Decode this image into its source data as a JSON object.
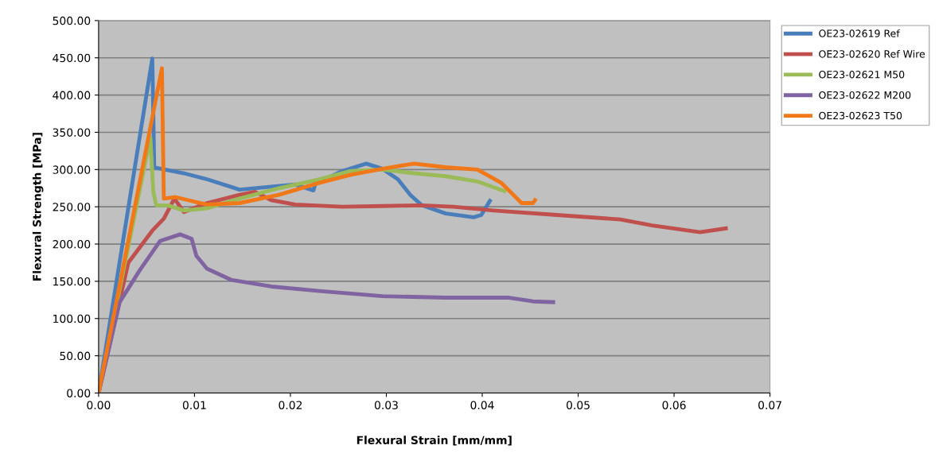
{
  "chart_data": {
    "type": "line",
    "xlabel": "Flexural Strain [mm/mm]",
    "ylabel": "Flexural Strength [MPa]",
    "xlim": [
      0,
      0.07
    ],
    "xticks": [
      {
        "value": 0,
        "label": "0.00"
      },
      {
        "value": 0.01,
        "label": "0.01"
      },
      {
        "value": 0.02,
        "label": "0.02"
      },
      {
        "value": 0.03,
        "label": "0.03"
      },
      {
        "value": 0.04,
        "label": "0.04"
      },
      {
        "value": 0.05,
        "label": "0.05"
      },
      {
        "value": 0.06,
        "label": "0.06"
      },
      {
        "value": 0.07,
        "label": "0.07"
      }
    ],
    "ylim": [
      0,
      500
    ],
    "yticks": [
      {
        "value": 0,
        "label": "0.00"
      },
      {
        "value": 50,
        "label": "50.00"
      },
      {
        "value": 100,
        "label": "100.00"
      },
      {
        "value": 150,
        "label": "150.00"
      },
      {
        "value": 200,
        "label": "200.00"
      },
      {
        "value": 250,
        "label": "250.00"
      },
      {
        "value": 300,
        "label": "300.00"
      },
      {
        "value": 350,
        "label": "350.00"
      },
      {
        "value": 400,
        "label": "400.00"
      },
      {
        "value": 450,
        "label": "450.00"
      },
      {
        "value": 500,
        "label": "500.00"
      }
    ],
    "grid": "y",
    "legend": "right",
    "marker": "none",
    "line_style": "solid",
    "series": [
      {
        "name": "OE23-02619 Ref",
        "color": "#4a7ebb",
        "x": [
          0,
          0.0056,
          0.0058,
          0.0089,
          0.0113,
          0.0147,
          0.018,
          0.0205,
          0.0224,
          0.0226,
          0.0254,
          0.0279,
          0.0296,
          0.0312,
          0.0325,
          0.0337,
          0.0362,
          0.0391,
          0.0399,
          0.0408
        ],
        "values": [
          0,
          449,
          303,
          295,
          287,
          273,
          277,
          280,
          272,
          281,
          298,
          308,
          301,
          287,
          266,
          252,
          241,
          236,
          239,
          258
        ]
      },
      {
        "name": "OE23-02620 Ref Wire",
        "color": "#c0504d",
        "x": [
          0,
          0.0031,
          0.0056,
          0.0068,
          0.0079,
          0.0089,
          0.0113,
          0.0147,
          0.0163,
          0.018,
          0.0205,
          0.0254,
          0.0296,
          0.0337,
          0.037,
          0.0412,
          0.0478,
          0.0544,
          0.0577,
          0.0627,
          0.0654
        ],
        "values": [
          0,
          175,
          218,
          234,
          261,
          243,
          255,
          266,
          270,
          259,
          253,
          250,
          251,
          252,
          250,
          245,
          239,
          233,
          225,
          216,
          221
        ]
      },
      {
        "name": "OE23-02621 M50",
        "color": "#9bbb59",
        "x": [
          0,
          0.0054,
          0.0057,
          0.006,
          0.0072,
          0.0089,
          0.0113,
          0.0147,
          0.0188,
          0.023,
          0.0263,
          0.0296,
          0.0329,
          0.0362,
          0.0395,
          0.0423
        ],
        "values": [
          0,
          343,
          271,
          252,
          252,
          245,
          248,
          261,
          275,
          287,
          298,
          300,
          295,
          291,
          284,
          271
        ]
      },
      {
        "name": "OE23-02622 M200",
        "color": "#8064a2",
        "x": [
          0,
          0.0022,
          0.0043,
          0.0064,
          0.0085,
          0.0097,
          0.0102,
          0.0113,
          0.0138,
          0.018,
          0.023,
          0.0296,
          0.0362,
          0.0428,
          0.0453,
          0.0474
        ],
        "values": [
          0,
          122,
          165,
          204,
          213,
          207,
          184,
          167,
          152,
          143,
          137,
          130,
          128,
          128,
          123,
          122
        ]
      },
      {
        "name": "OE23-02623 T50",
        "color": "#f07818",
        "x": [
          0,
          0.0066,
          0.0068,
          0.008,
          0.0113,
          0.0147,
          0.0188,
          0.023,
          0.0263,
          0.0296,
          0.0329,
          0.0362,
          0.0395,
          0.042,
          0.0441,
          0.0453,
          0.0455
        ],
        "values": [
          0,
          436,
          261,
          263,
          253,
          255,
          266,
          282,
          293,
          301,
          308,
          303,
          300,
          282,
          255,
          255,
          259
        ]
      }
    ]
  }
}
